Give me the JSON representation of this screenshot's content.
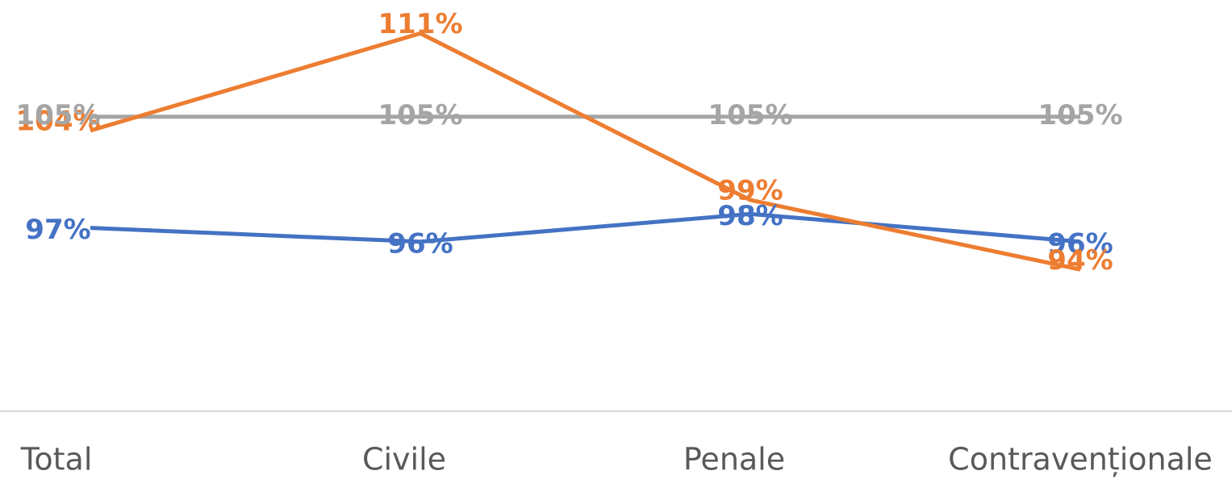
{
  "chart_data": {
    "type": "line",
    "categories": [
      "Total",
      "Civile",
      "Penale",
      "Contravenționale"
    ],
    "series": [
      {
        "color": "#4472c4",
        "values": [
          97,
          96,
          98,
          96
        ],
        "value_labels": [
          "97%",
          "96%",
          "98%",
          "96%"
        ]
      },
      {
        "color": "#ed7d31",
        "values": [
          104,
          111,
          99,
          94
        ],
        "value_labels": [
          "104%",
          "111%",
          "99%",
          "94%"
        ]
      },
      {
        "color": "#a5a5a5",
        "values": [
          105,
          105,
          105,
          105
        ],
        "value_labels": [
          "105%",
          "105%",
          "105%",
          "105%"
        ]
      }
    ],
    "ylim": [
      83.8,
      113.4
    ]
  }
}
